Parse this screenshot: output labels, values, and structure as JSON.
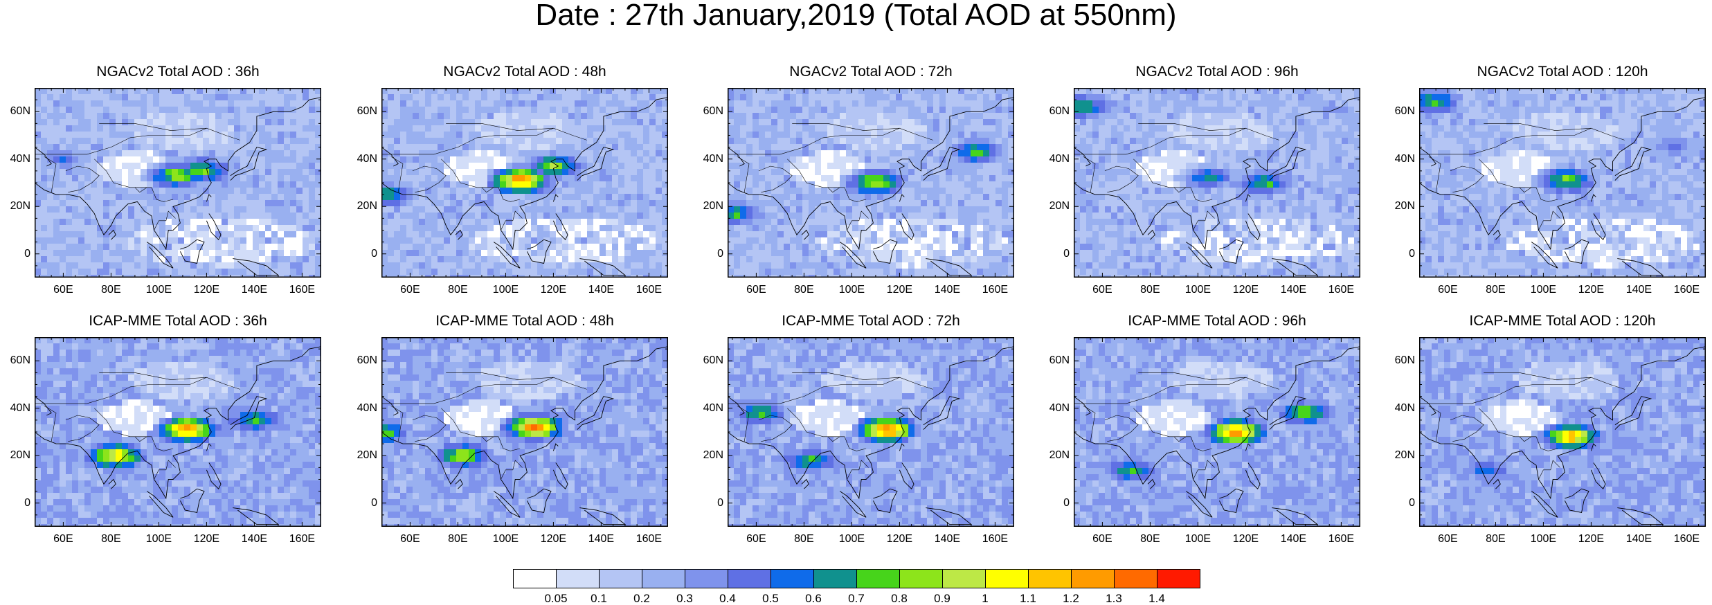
{
  "page": {
    "title": "Date : 27th January,2019 (Total AOD at 550nm)"
  },
  "axes": {
    "lon_ticks": [
      "60E",
      "80E",
      "100E",
      "120E",
      "140E",
      "160E"
    ],
    "lat_ticks": [
      "60N",
      "40N",
      "20N",
      "0"
    ],
    "lon_range": [
      48,
      168
    ],
    "lat_range": [
      -10,
      70
    ]
  },
  "panels": [
    {
      "title": "NGACv2 Total AOD : 36h",
      "model": "NGACv2",
      "lead": "36h",
      "hotspots": [
        {
          "lon": 118,
          "lat": 35,
          "aod": 0.9
        },
        {
          "lon": 108,
          "lat": 33,
          "aod": 1.0
        },
        {
          "lon": 60,
          "lat": 40,
          "aod": 0.5
        }
      ]
    },
    {
      "title": "NGACv2 Total AOD : 48h",
      "model": "NGACv2",
      "lead": "48h",
      "hotspots": [
        {
          "lon": 120,
          "lat": 37,
          "aod": 0.9
        },
        {
          "lon": 106,
          "lat": 31,
          "aod": 1.4
        },
        {
          "lon": 50,
          "lat": 25,
          "aod": 0.8
        }
      ]
    },
    {
      "title": "NGACv2 Total AOD : 72h",
      "model": "NGACv2",
      "lead": "72h",
      "hotspots": [
        {
          "lon": 110,
          "lat": 30,
          "aod": 1.0
        },
        {
          "lon": 152,
          "lat": 43,
          "aod": 0.8
        },
        {
          "lon": 50,
          "lat": 17,
          "aod": 0.8
        }
      ]
    },
    {
      "title": "NGACv2 Total AOD : 96h",
      "model": "NGACv2",
      "lead": "96h",
      "hotspots": [
        {
          "lon": 128,
          "lat": 30,
          "aod": 0.8
        },
        {
          "lon": 52,
          "lat": 62,
          "aod": 0.8
        },
        {
          "lon": 105,
          "lat": 32,
          "aod": 0.7
        }
      ]
    },
    {
      "title": "NGACv2 Total AOD : 120h",
      "model": "NGACv2",
      "lead": "120h",
      "hotspots": [
        {
          "lon": 110,
          "lat": 31,
          "aod": 0.9
        },
        {
          "lon": 54,
          "lat": 64,
          "aod": 0.8
        },
        {
          "lon": 155,
          "lat": 45,
          "aod": 0.5
        }
      ]
    },
    {
      "title": "ICAP-MME Total AOD : 36h",
      "model": "ICAP-MME",
      "lead": "36h",
      "hotspots": [
        {
          "lon": 112,
          "lat": 31,
          "aod": 1.4
        },
        {
          "lon": 82,
          "lat": 20,
          "aod": 1.2
        },
        {
          "lon": 140,
          "lat": 35,
          "aod": 0.8
        }
      ]
    },
    {
      "title": "ICAP-MME Total AOD : 48h",
      "model": "ICAP-MME",
      "lead": "48h",
      "hotspots": [
        {
          "lon": 112,
          "lat": 32,
          "aod": 1.4
        },
        {
          "lon": 82,
          "lat": 20,
          "aod": 1.0
        },
        {
          "lon": 48,
          "lat": 30,
          "aod": 0.9
        }
      ]
    },
    {
      "title": "ICAP-MME Total AOD : 72h",
      "model": "ICAP-MME",
      "lead": "72h",
      "hotspots": [
        {
          "lon": 115,
          "lat": 31,
          "aod": 1.4
        },
        {
          "lon": 62,
          "lat": 38,
          "aod": 0.8
        },
        {
          "lon": 82,
          "lat": 18,
          "aod": 0.8
        }
      ]
    },
    {
      "title": "ICAP-MME Total AOD : 96h",
      "model": "ICAP-MME",
      "lead": "96h",
      "hotspots": [
        {
          "lon": 116,
          "lat": 30,
          "aod": 1.4
        },
        {
          "lon": 72,
          "lat": 14,
          "aod": 0.8
        },
        {
          "lon": 145,
          "lat": 38,
          "aod": 0.9
        }
      ]
    },
    {
      "title": "ICAP-MME Total AOD : 120h",
      "model": "ICAP-MME",
      "lead": "120h",
      "hotspots": [
        {
          "lon": 112,
          "lat": 28,
          "aod": 1.3
        },
        {
          "lon": 76,
          "lat": 14,
          "aod": 0.6
        }
      ]
    }
  ],
  "colorbar": {
    "labels": [
      "0.05",
      "0.1",
      "0.2",
      "0.3",
      "0.4",
      "0.5",
      "0.6",
      "0.7",
      "0.8",
      "0.9",
      "1",
      "1.1",
      "1.2",
      "1.3",
      "1.4"
    ],
    "colors": [
      "#ffffff",
      "#d2ddf8",
      "#b4c5f4",
      "#99b0f0",
      "#7f93ec",
      "#5f70e4",
      "#0f6bea",
      "#10918e",
      "#47d41b",
      "#8de41b",
      "#bde846",
      "#ffff00",
      "#ffc400",
      "#ff9b00",
      "#ff6a00",
      "#ff1a00"
    ]
  }
}
